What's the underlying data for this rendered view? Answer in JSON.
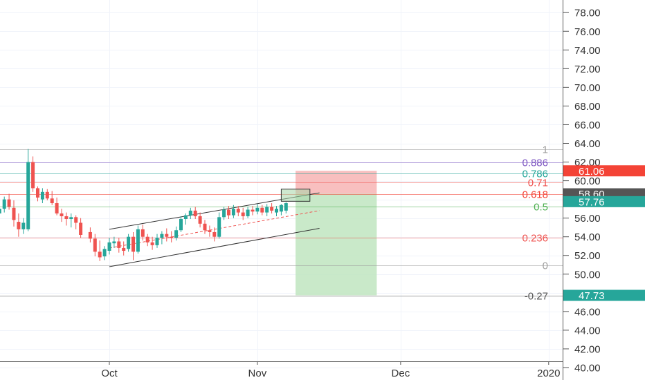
{
  "chart_data": {
    "type": "candlestick",
    "title": "",
    "xlabel": "",
    "ylabel": "",
    "ylim": [
      38.5,
      79.3
    ],
    "y_ticks": [
      "40.00",
      "42.00",
      "44.00",
      "46.00",
      "48.00",
      "50.00",
      "52.00",
      "54.00",
      "56.00",
      "58.00",
      "60.00",
      "62.00",
      "64.00",
      "66.00",
      "68.00",
      "70.00",
      "72.00",
      "74.00",
      "76.00",
      "78.00"
    ],
    "x_ticks": [
      {
        "label": "Oct",
        "day": 0
      },
      {
        "label": "Nov",
        "day": 31
      },
      {
        "label": "Dec",
        "day": 61
      },
      {
        "label": "2020",
        "day": 92
      }
    ],
    "grid": true,
    "candles": [
      {
        "day": -23,
        "o": 56.5,
        "h": 57.4,
        "l": 55.2,
        "c": 57.0
      },
      {
        "day": -22,
        "o": 57.0,
        "h": 58.3,
        "l": 56.6,
        "c": 58.0
      },
      {
        "day": -21,
        "o": 58.0,
        "h": 58.6,
        "l": 56.9,
        "c": 57.2
      },
      {
        "day": -20,
        "o": 57.1,
        "h": 57.9,
        "l": 55.1,
        "c": 55.8
      },
      {
        "day": -19,
        "o": 55.6,
        "h": 56.5,
        "l": 54.0,
        "c": 54.8
      },
      {
        "day": -18,
        "o": 54.8,
        "h": 56.0,
        "l": 54.3,
        "c": 55.5
      },
      {
        "day": -17,
        "o": 54.8,
        "h": 63.4,
        "l": 54.6,
        "c": 62.0
      },
      {
        "day": -16,
        "o": 62.0,
        "h": 62.6,
        "l": 58.8,
        "c": 59.2
      },
      {
        "day": -15,
        "o": 59.2,
        "h": 59.4,
        "l": 57.8,
        "c": 58.2
      },
      {
        "day": -14,
        "o": 58.0,
        "h": 59.2,
        "l": 57.6,
        "c": 58.8
      },
      {
        "day": -13,
        "o": 58.8,
        "h": 59.1,
        "l": 57.9,
        "c": 58.1
      },
      {
        "day": -12,
        "o": 58.1,
        "h": 58.9,
        "l": 57.4,
        "c": 57.6
      },
      {
        "day": -11,
        "o": 57.6,
        "h": 58.2,
        "l": 56.3,
        "c": 56.5
      },
      {
        "day": -10,
        "o": 56.5,
        "h": 57.0,
        "l": 55.6,
        "c": 56.2
      },
      {
        "day": -9,
        "o": 56.2,
        "h": 56.6,
        "l": 55.2,
        "c": 55.9
      },
      {
        "day": -8,
        "o": 55.9,
        "h": 56.5,
        "l": 55.0,
        "c": 56.1
      },
      {
        "day": -7,
        "o": 56.1,
        "h": 56.3,
        "l": 54.8,
        "c": 55.5
      },
      {
        "day": -6,
        "o": 55.5,
        "h": 56.0,
        "l": 53.9,
        "c": 54.2
      },
      {
        "day": -4,
        "o": 54.5,
        "h": 55.0,
        "l": 53.4,
        "c": 53.8
      },
      {
        "day": -3,
        "o": 53.8,
        "h": 54.3,
        "l": 51.9,
        "c": 52.4
      },
      {
        "day": -2,
        "o": 52.4,
        "h": 53.6,
        "l": 51.4,
        "c": 51.8
      },
      {
        "day": -1,
        "o": 51.9,
        "h": 53.0,
        "l": 51.5,
        "c": 52.7
      },
      {
        "day": 0,
        "o": 52.5,
        "h": 53.9,
        "l": 52.1,
        "c": 53.4
      },
      {
        "day": 1,
        "o": 53.3,
        "h": 54.0,
        "l": 52.8,
        "c": 53.5
      },
      {
        "day": 2,
        "o": 53.5,
        "h": 53.9,
        "l": 52.3,
        "c": 52.8
      },
      {
        "day": 3,
        "o": 52.8,
        "h": 53.5,
        "l": 52.0,
        "c": 52.5
      },
      {
        "day": 4,
        "o": 52.7,
        "h": 54.3,
        "l": 52.4,
        "c": 54.0
      },
      {
        "day": 5,
        "o": 54.0,
        "h": 54.5,
        "l": 51.5,
        "c": 52.4
      },
      {
        "day": 6,
        "o": 52.4,
        "h": 55.2,
        "l": 52.2,
        "c": 54.8
      },
      {
        "day": 7,
        "o": 54.8,
        "h": 55.3,
        "l": 53.6,
        "c": 54.0
      },
      {
        "day": 8,
        "o": 54.0,
        "h": 54.3,
        "l": 53.0,
        "c": 53.4
      },
      {
        "day": 9,
        "o": 53.4,
        "h": 54.0,
        "l": 52.6,
        "c": 53.1
      },
      {
        "day": 10,
        "o": 53.1,
        "h": 54.3,
        "l": 52.8,
        "c": 53.9
      },
      {
        "day": 11,
        "o": 53.9,
        "h": 54.6,
        "l": 53.2,
        "c": 54.3
      },
      {
        "day": 12,
        "o": 54.3,
        "h": 54.9,
        "l": 53.5,
        "c": 54.0
      },
      {
        "day": 13,
        "o": 54.0,
        "h": 54.6,
        "l": 53.4,
        "c": 53.9
      },
      {
        "day": 14,
        "o": 53.9,
        "h": 55.1,
        "l": 53.6,
        "c": 54.7
      },
      {
        "day": 15,
        "o": 54.7,
        "h": 56.2,
        "l": 54.5,
        "c": 55.9
      },
      {
        "day": 16,
        "o": 55.9,
        "h": 56.5,
        "l": 55.3,
        "c": 56.3
      },
      {
        "day": 17,
        "o": 56.3,
        "h": 57.1,
        "l": 55.9,
        "c": 56.8
      },
      {
        "day": 18,
        "o": 56.8,
        "h": 57.2,
        "l": 55.9,
        "c": 56.2
      },
      {
        "day": 19,
        "o": 56.2,
        "h": 56.6,
        "l": 55.0,
        "c": 55.4
      },
      {
        "day": 20,
        "o": 55.4,
        "h": 55.8,
        "l": 54.3,
        "c": 54.7
      },
      {
        "day": 21,
        "o": 54.7,
        "h": 55.2,
        "l": 54.0,
        "c": 54.5
      },
      {
        "day": 22,
        "o": 54.5,
        "h": 55.0,
        "l": 53.5,
        "c": 54.0
      },
      {
        "day": 23,
        "o": 54.0,
        "h": 56.6,
        "l": 53.8,
        "c": 56.1
      },
      {
        "day": 24,
        "o": 56.1,
        "h": 57.2,
        "l": 55.8,
        "c": 56.9
      },
      {
        "day": 25,
        "o": 56.9,
        "h": 57.3,
        "l": 55.9,
        "c": 56.3
      },
      {
        "day": 26,
        "o": 56.3,
        "h": 57.4,
        "l": 56.0,
        "c": 57.0
      },
      {
        "day": 27,
        "o": 57.0,
        "h": 57.3,
        "l": 56.2,
        "c": 56.6
      },
      {
        "day": 28,
        "o": 56.6,
        "h": 57.1,
        "l": 55.8,
        "c": 56.2
      },
      {
        "day": 29,
        "o": 56.2,
        "h": 57.2,
        "l": 56.0,
        "c": 56.9
      },
      {
        "day": 30,
        "o": 56.9,
        "h": 57.3,
        "l": 56.3,
        "c": 56.7
      },
      {
        "day": 31,
        "o": 56.7,
        "h": 57.5,
        "l": 56.4,
        "c": 57.1
      },
      {
        "day": 32,
        "o": 57.1,
        "h": 57.4,
        "l": 56.3,
        "c": 56.6
      },
      {
        "day": 33,
        "o": 56.6,
        "h": 57.5,
        "l": 56.2,
        "c": 57.2
      },
      {
        "day": 34,
        "o": 57.2,
        "h": 57.6,
        "l": 56.5,
        "c": 56.8
      },
      {
        "day": 35,
        "o": 56.6,
        "h": 57.3,
        "l": 56.2,
        "c": 57.0
      },
      {
        "day": 36,
        "o": 56.7,
        "h": 57.5,
        "l": 56.3,
        "c": 57.4
      },
      {
        "day": 37,
        "o": 56.8,
        "h": 57.7,
        "l": 56.5,
        "c": 57.6
      }
    ],
    "annotations": {
      "channel_lines": [
        {
          "from": {
            "day": 0,
            "price": 54.8
          },
          "to": {
            "day": 44,
            "price": 58.7
          }
        },
        {
          "from": {
            "day": 0,
            "price": 50.8
          },
          "to": {
            "day": 44,
            "price": 54.9
          }
        }
      ],
      "mid_line": {
        "from": {
          "day": 0,
          "price": 52.8
        },
        "to": {
          "day": 44,
          "price": 56.8
        }
      },
      "fib_levels": [
        {
          "label": "1",
          "price": 63.4,
          "color": "#9e9e9e"
        },
        {
          "label": "0.886",
          "price": 62.0,
          "color": "#7e57c2"
        },
        {
          "label": "0.786",
          "price": 60.8,
          "color": "#26a69a"
        },
        {
          "label": "0.71",
          "price": 59.8,
          "color": "#ef5350"
        },
        {
          "label": "0.618",
          "price": 58.6,
          "color": "#f44336"
        },
        {
          "label": "0.5",
          "price": 57.25,
          "color": "#4caf50"
        },
        {
          "label": "0.236",
          "price": 53.9,
          "color": "#ef5350"
        },
        {
          "label": "0",
          "price": 50.95,
          "color": "#9e9e9e"
        },
        {
          "label": "-0.27",
          "price": 47.7,
          "color": "#555555"
        }
      ],
      "position": {
        "day_from": 39,
        "day_to": 56,
        "stop_price": 61.06,
        "entry_price": 58.6,
        "target_price": 47.73,
        "loss_color": "#f7b4b4",
        "profit_color": "#bfe5c0"
      },
      "entry_box": {
        "day_from": 36,
        "day_to": 42,
        "price_top": 59.1,
        "price_bottom": 57.8
      }
    },
    "price_labels": [
      {
        "text": "61.06",
        "price": 61.06,
        "color": "#f44336"
      },
      {
        "text": "58.60",
        "price": 58.6,
        "color": "#555555"
      },
      {
        "text": "57.76",
        "price": 57.76,
        "color": "#26a69a"
      },
      {
        "text": "47.73",
        "price": 47.73,
        "color": "#26a69a"
      }
    ],
    "colors": {
      "up": "#26a69a",
      "down": "#ef5350"
    }
  }
}
